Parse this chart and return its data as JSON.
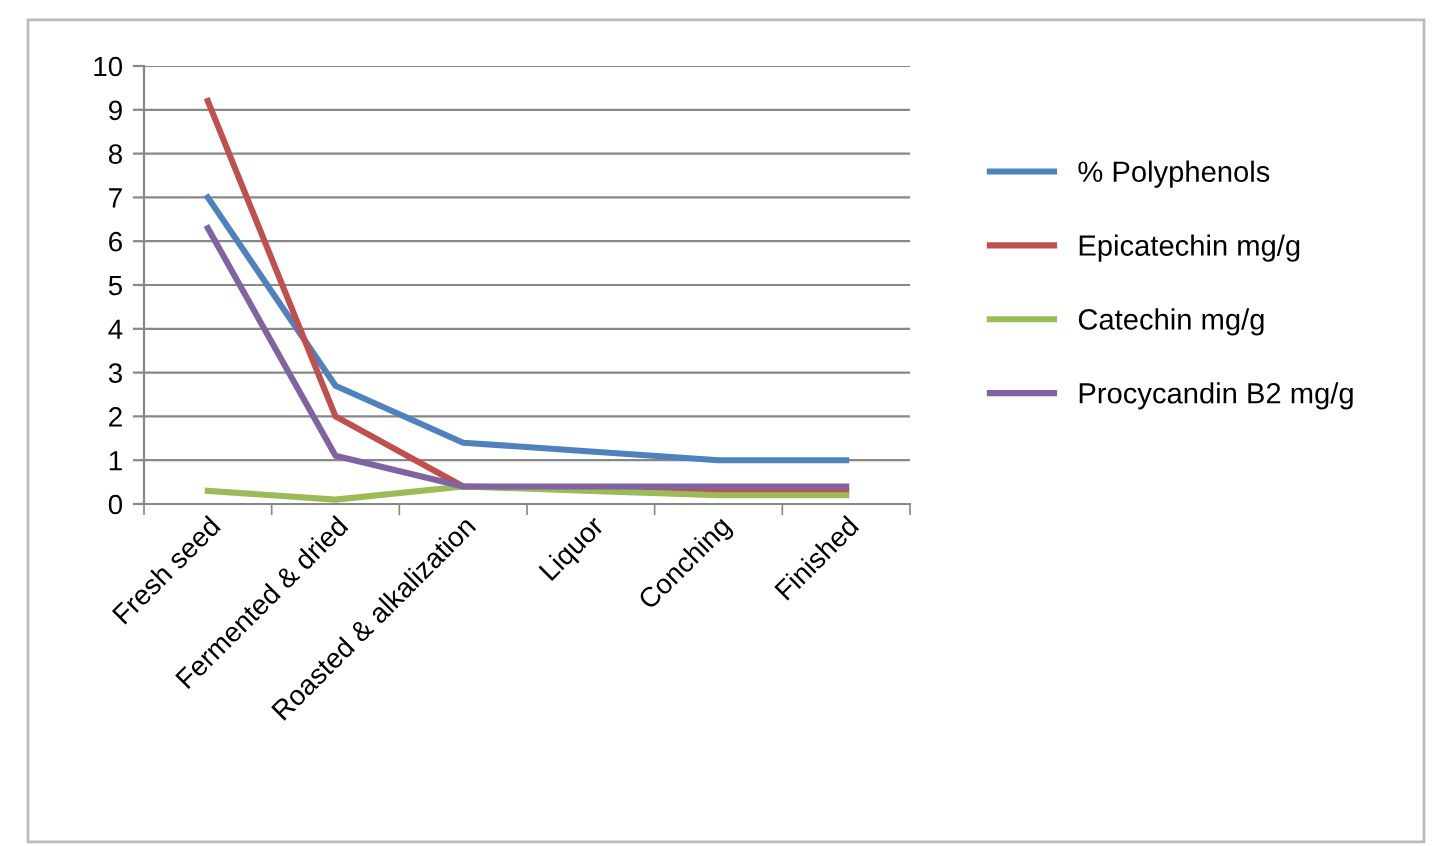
{
  "chart_data": {
    "type": "line",
    "categories": [
      "Fresh seed",
      "Fermented & dried",
      "Roasted & alkalization",
      "Liquor",
      "Conching",
      "Finished"
    ],
    "series": [
      {
        "name": "% Polyphenols",
        "color": "#4f81bd",
        "values": [
          7.0,
          2.7,
          1.4,
          1.2,
          1.0,
          1.0
        ]
      },
      {
        "name": "Epicatechin mg/g",
        "color": "#c0504d",
        "values": [
          9.2,
          2.0,
          0.4,
          0.35,
          0.3,
          0.3
        ]
      },
      {
        "name": "Catechin mg/g",
        "color": "#9bbb59",
        "values": [
          0.3,
          0.1,
          0.4,
          0.3,
          0.2,
          0.2
        ]
      },
      {
        "name": "Procycandin B2 mg/g",
        "color": "#8064a2",
        "values": [
          6.3,
          1.1,
          0.4,
          0.4,
          0.4,
          0.4
        ]
      }
    ],
    "ylim": [
      0,
      10
    ],
    "yticks": [
      0,
      1,
      2,
      3,
      4,
      5,
      6,
      7,
      8,
      9,
      10
    ],
    "grid": "y",
    "legend": "right",
    "marker": "none",
    "line_style": "solid"
  }
}
